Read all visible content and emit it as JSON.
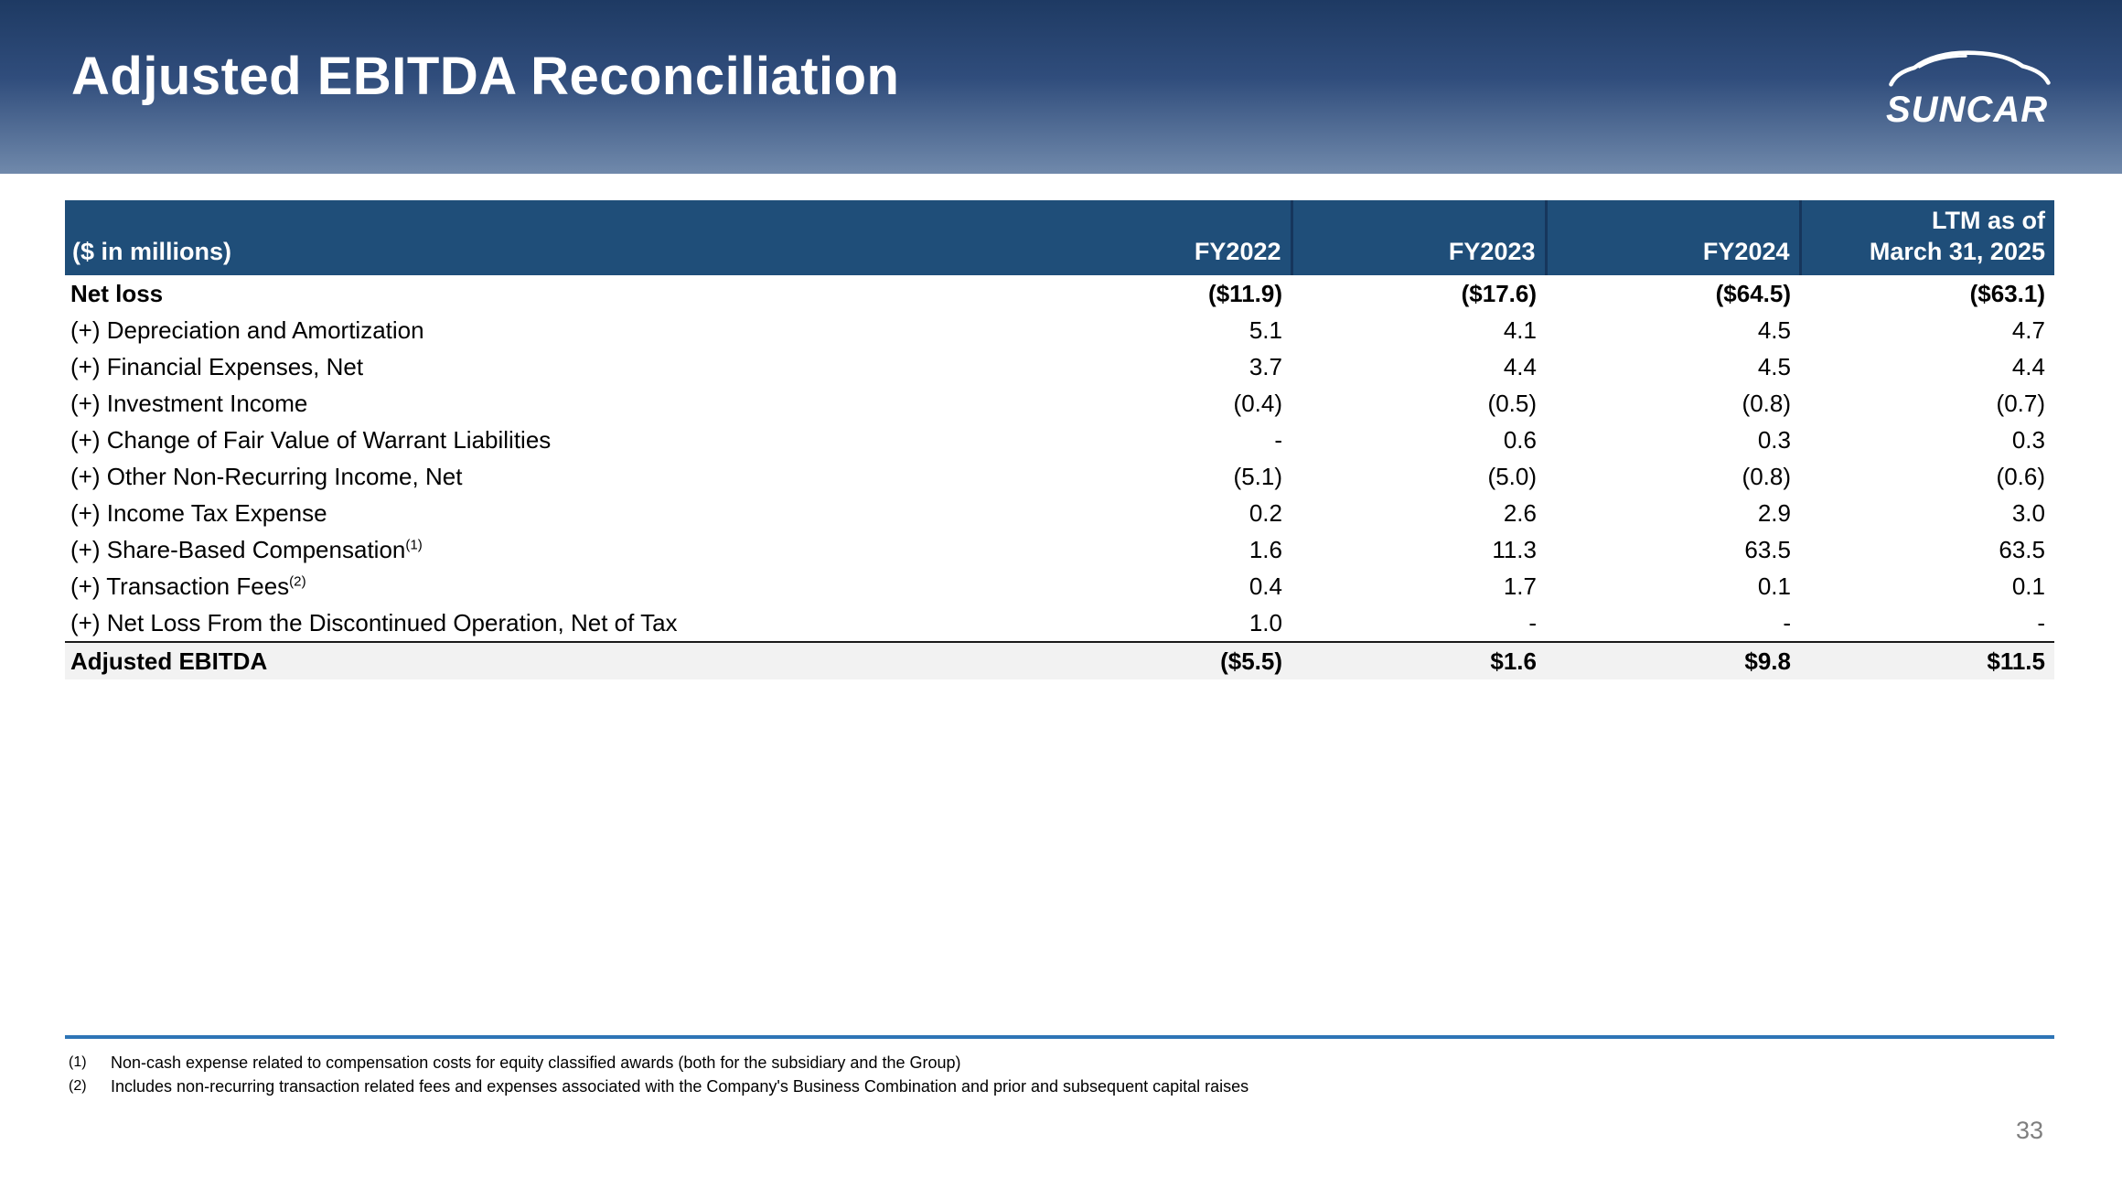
{
  "slide": {
    "title": "Adjusted EBITDA Reconciliation",
    "page_number": "33"
  },
  "logo": {
    "text": "SUNCAR",
    "icon": "car-outline-icon"
  },
  "colors": {
    "banner_top": "#1e3a63",
    "banner_bottom": "#7089ab",
    "table_header_bar": "#1f4e79",
    "footnote_rule": "#2e75b6",
    "total_row_bg": "#f2f2f2",
    "page_number_gray": "#7f7f7f"
  },
  "table": {
    "unit_label": "($ in millions)",
    "columns": [
      {
        "line1": "",
        "line2": "FY2022"
      },
      {
        "line1": "",
        "line2": "FY2023"
      },
      {
        "line1": "",
        "line2": "FY2024"
      },
      {
        "line1": "LTM as of",
        "line2": "March 31, 2025"
      }
    ],
    "rows": [
      {
        "label": "Net loss",
        "bold": true,
        "total": false,
        "sup": "",
        "values": [
          "($11.9)",
          "($17.6)",
          "($64.5)",
          "($63.1)"
        ]
      },
      {
        "label": "(+) Depreciation and Amortization",
        "bold": false,
        "total": false,
        "sup": "",
        "values": [
          "5.1",
          "4.1",
          "4.5",
          "4.7"
        ]
      },
      {
        "label": "(+) Financial Expenses, Net",
        "bold": false,
        "total": false,
        "sup": "",
        "values": [
          "3.7",
          "4.4",
          "4.5",
          "4.4"
        ]
      },
      {
        "label": "(+) Investment Income",
        "bold": false,
        "total": false,
        "sup": "",
        "values": [
          "(0.4)",
          "(0.5)",
          "(0.8)",
          "(0.7)"
        ]
      },
      {
        "label": "(+) Change of Fair Value of Warrant Liabilities",
        "bold": false,
        "total": false,
        "sup": "",
        "values": [
          "-",
          "0.6",
          "0.3",
          "0.3"
        ]
      },
      {
        "label": "(+) Other Non-Recurring Income, Net",
        "bold": false,
        "total": false,
        "sup": "",
        "values": [
          "(5.1)",
          "(5.0)",
          "(0.8)",
          "(0.6)"
        ]
      },
      {
        "label": "(+) Income Tax Expense",
        "bold": false,
        "total": false,
        "sup": "",
        "values": [
          "0.2",
          "2.6",
          "2.9",
          "3.0"
        ]
      },
      {
        "label": "(+) Share-Based Compensation",
        "bold": false,
        "total": false,
        "sup": "(1)",
        "values": [
          "1.6",
          "11.3",
          "63.5",
          "63.5"
        ]
      },
      {
        "label": "(+) Transaction Fees",
        "bold": false,
        "total": false,
        "sup": "(2)",
        "values": [
          "0.4",
          "1.7",
          "0.1",
          "0.1"
        ]
      },
      {
        "label": "(+) Net Loss From the Discontinued Operation, Net of Tax",
        "bold": false,
        "total": false,
        "sup": "",
        "values": [
          "1.0",
          "-",
          "-",
          "-"
        ]
      },
      {
        "label": "Adjusted EBITDA",
        "bold": true,
        "total": true,
        "sup": "",
        "values": [
          "($5.5)",
          "$1.6",
          "$9.8",
          "$11.5"
        ]
      }
    ]
  },
  "footnotes": [
    {
      "marker": "(1)",
      "text": "Non-cash expense related to compensation costs for equity classified awards (both for the subsidiary and the Group)"
    },
    {
      "marker": "(2)",
      "text": "Includes non-recurring transaction related fees and expenses associated with the Company's Business Combination and prior and subsequent capital raises"
    }
  ]
}
